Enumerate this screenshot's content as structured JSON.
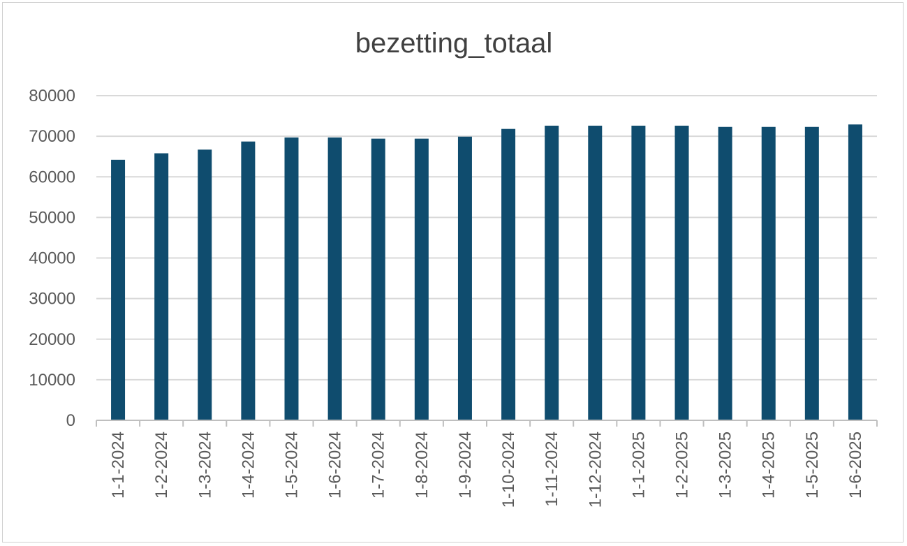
{
  "chart_data": {
    "type": "bar",
    "title": "bezetting_totaal",
    "xlabel": "",
    "ylabel": "",
    "categories": [
      "1-1-2024",
      "1-2-2024",
      "1-3-2024",
      "1-4-2024",
      "1-5-2024",
      "1-6-2024",
      "1-7-2024",
      "1-8-2024",
      "1-9-2024",
      "1-10-2024",
      "1-11-2024",
      "1-12-2024",
      "1-1-2025",
      "1-2-2025",
      "1-3-2025",
      "1-4-2025",
      "1-5-2025",
      "1-6-2025"
    ],
    "values": [
      64200,
      65800,
      66700,
      68700,
      69700,
      69700,
      69400,
      69400,
      69900,
      71800,
      72600,
      72600,
      72600,
      72600,
      72300,
      72300,
      72300,
      72900
    ],
    "ylim": [
      0,
      80000
    ],
    "yticks": [
      "0",
      "10000",
      "20000",
      "30000",
      "40000",
      "50000",
      "60000",
      "70000",
      "80000"
    ],
    "grid": true,
    "legend": "none",
    "bar_color": "#0f4c6e",
    "grid_color": "#d9d9d9",
    "axis_color": "#bfbfbf"
  }
}
